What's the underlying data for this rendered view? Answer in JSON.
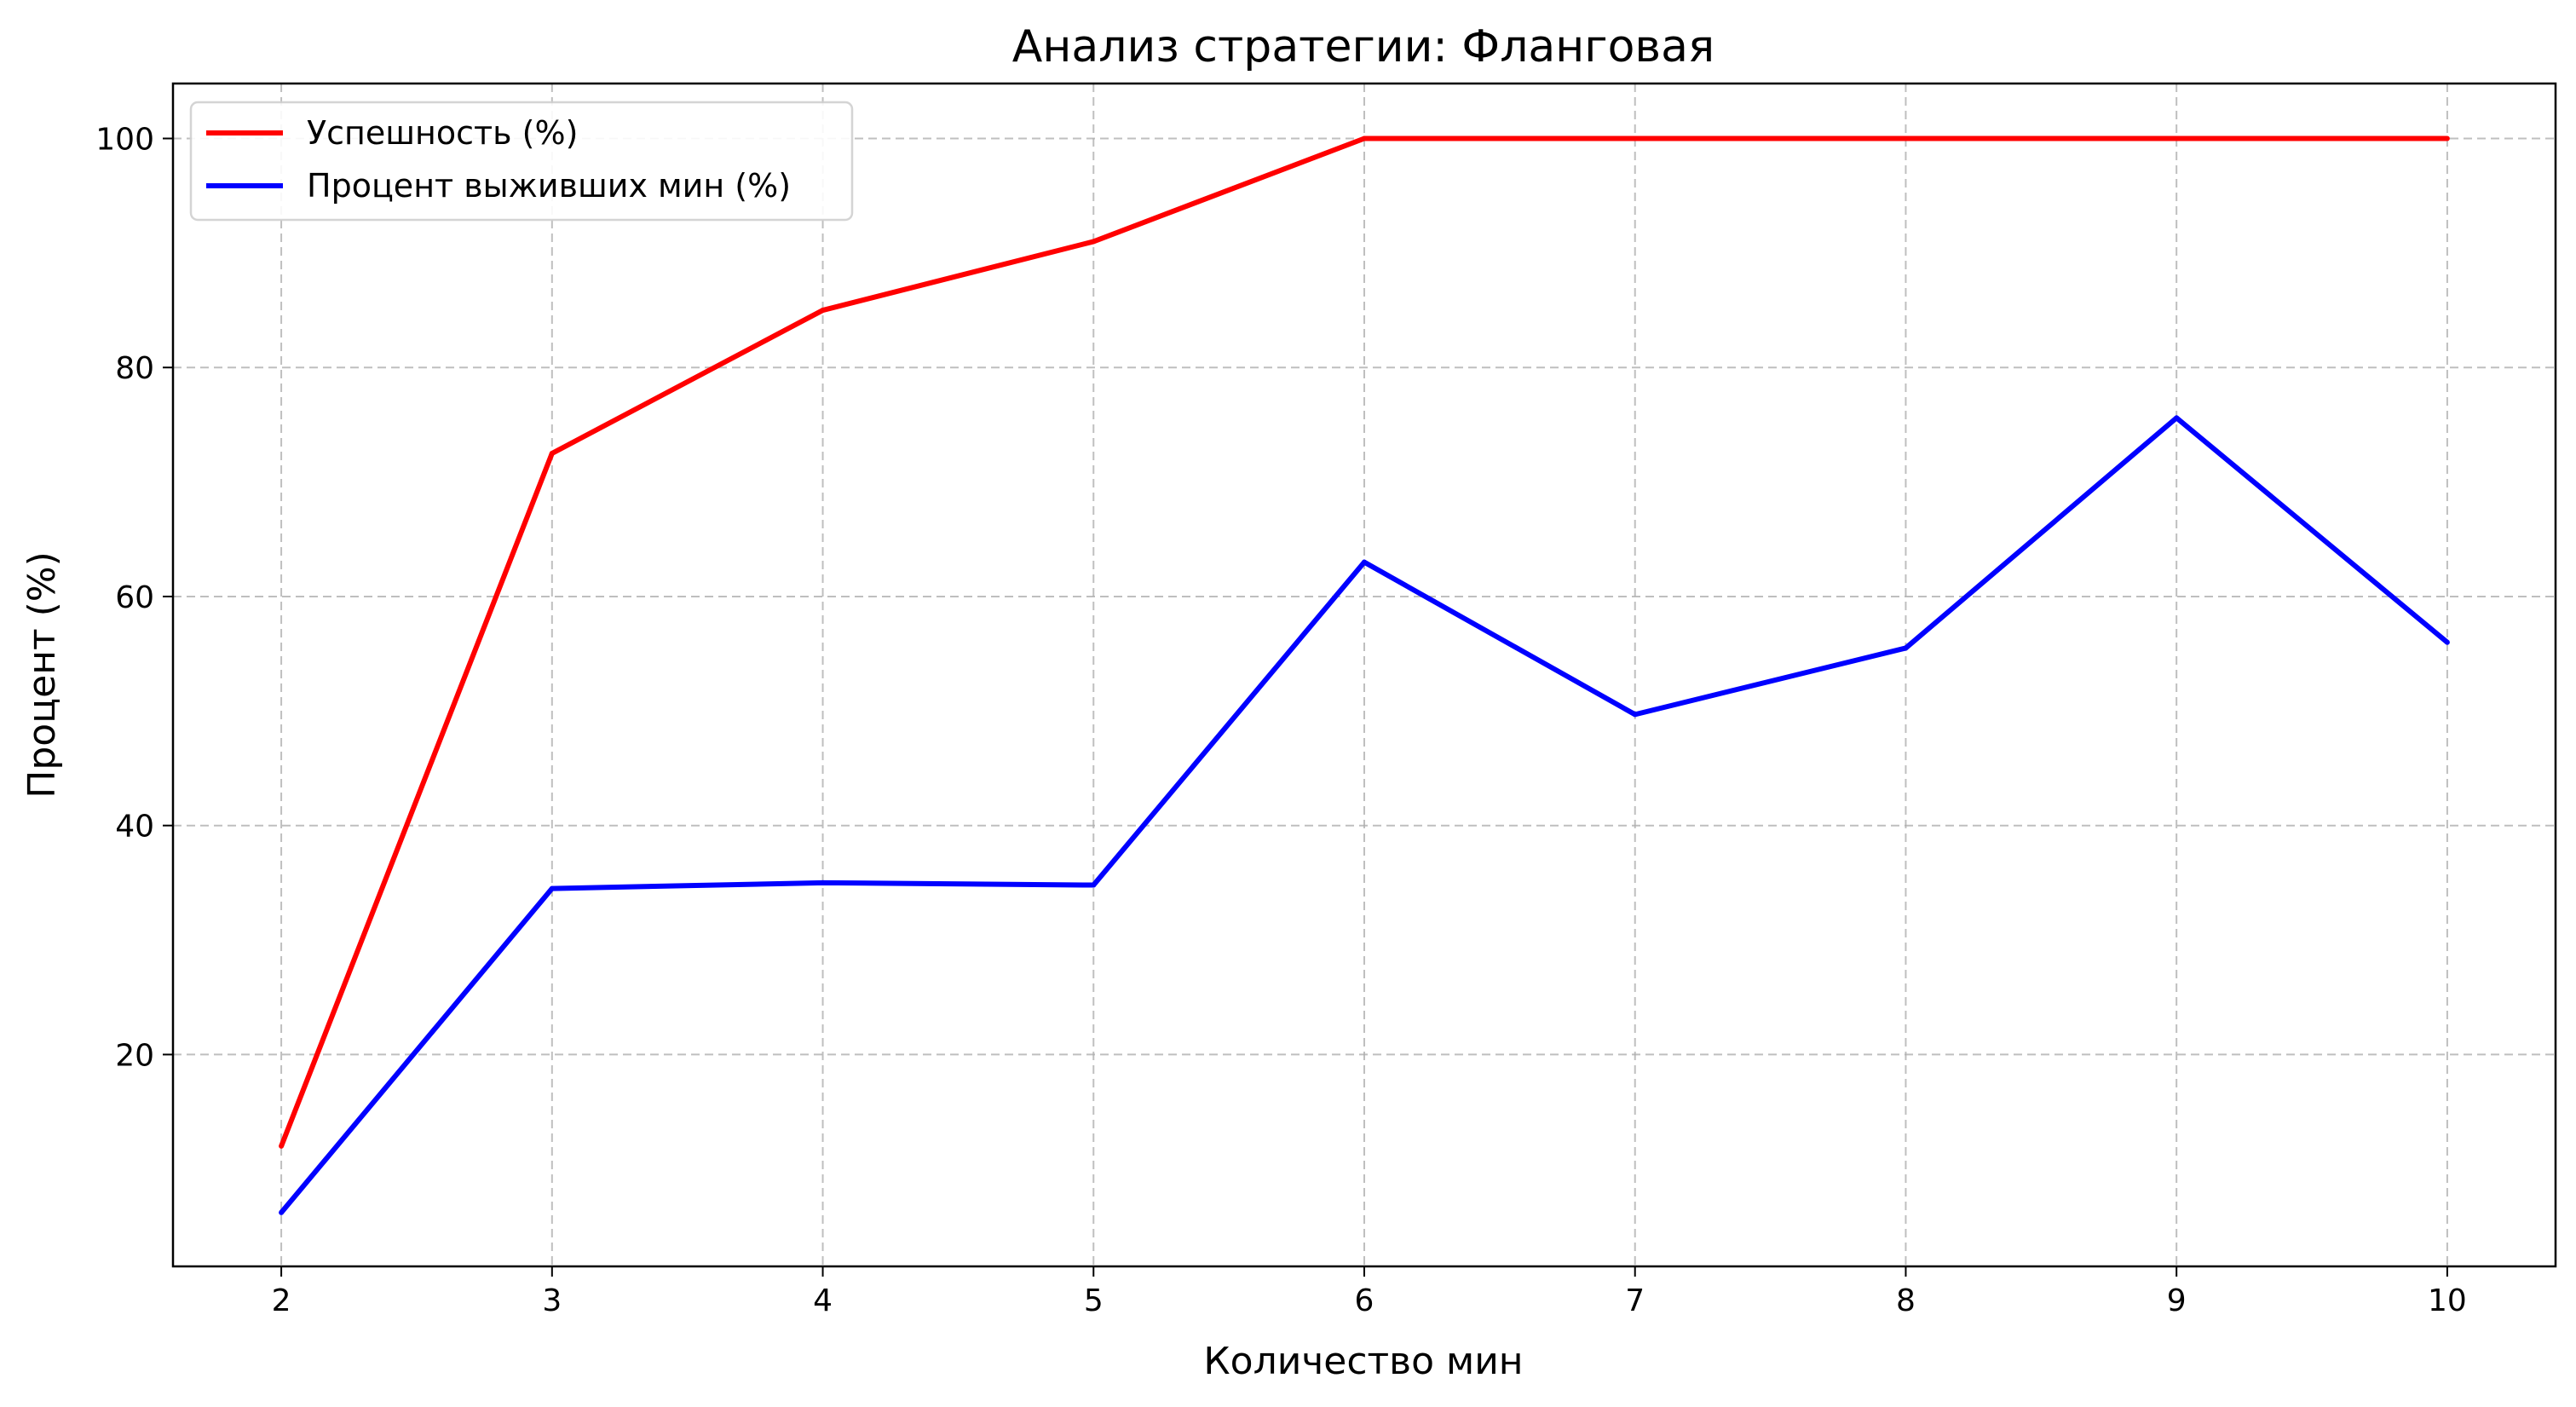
{
  "chart_data": {
    "type": "line",
    "title": "Анализ стратегии: Фланговая",
    "xlabel": "Количество мин",
    "ylabel": "Процент (%)",
    "x": [
      2,
      3,
      4,
      5,
      6,
      7,
      8,
      9,
      10
    ],
    "xlim": [
      1.6,
      10.4
    ],
    "ylim": [
      1.5,
      104.8
    ],
    "xticks": [
      2,
      3,
      4,
      5,
      6,
      7,
      8,
      9,
      10
    ],
    "yticks": [
      20,
      40,
      60,
      80,
      100
    ],
    "grid": true,
    "legend_position": "top-left",
    "series": [
      {
        "name": "Успешность (%)",
        "color": "#ff0000",
        "values": [
          12,
          72.5,
          85,
          91,
          100,
          100,
          100,
          100,
          100
        ]
      },
      {
        "name": "Процент выживших мин (%)",
        "color": "#0000ff",
        "values": [
          6.2,
          34.5,
          35,
          34.8,
          63,
          49.7,
          55.5,
          75.6,
          56
        ]
      }
    ]
  }
}
